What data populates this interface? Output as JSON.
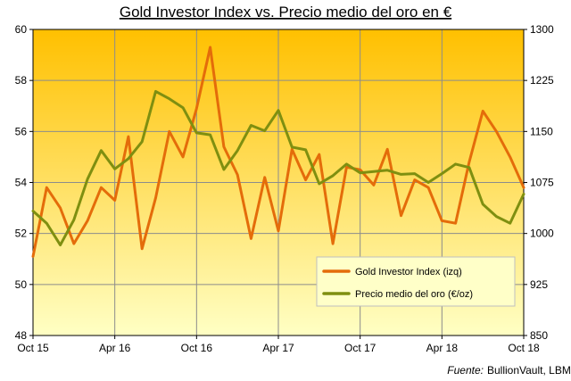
{
  "chart_data": {
    "type": "line",
    "title": "Gold Investor  Index  vs.  Precio medio del oro en €",
    "source_label": "Fuente:",
    "source_value": "BullionVault, LBMA",
    "x_ticks": [
      "Oct 15",
      "Apr 16",
      "Oct 16",
      "Apr 17",
      "Oct 17",
      "Apr 18",
      "Oct 18"
    ],
    "x_range": [
      0,
      36
    ],
    "y_left": {
      "min": 48,
      "max": 60,
      "ticks": [
        48,
        50,
        52,
        54,
        56,
        58,
        60
      ]
    },
    "y_right": {
      "min": 850,
      "max": 1300,
      "ticks": [
        850,
        925,
        1000,
        1075,
        1150,
        1225,
        1300
      ]
    },
    "background": {
      "top": "#ffc000",
      "bottom": "#ffffc4"
    },
    "legend": {
      "position": "bottom-right"
    },
    "series": [
      {
        "name": "Gold Investor Index (izq)",
        "axis": "left",
        "color": "#e46c0a",
        "x": [
          0,
          1,
          2,
          3,
          4,
          5,
          6,
          7,
          8,
          9,
          10,
          11,
          12,
          13,
          14,
          15,
          16,
          17,
          18,
          19,
          20,
          21,
          22,
          23,
          24,
          25,
          26,
          27,
          28,
          29,
          30,
          31,
          32,
          33,
          34,
          35,
          36
        ],
        "values": [
          51.1,
          53.8,
          53.0,
          51.6,
          52.5,
          53.8,
          53.3,
          55.8,
          51.4,
          53.4,
          56.0,
          55.0,
          56.9,
          59.3,
          55.4,
          54.3,
          51.8,
          54.2,
          52.1,
          55.3,
          54.1,
          55.1,
          51.6,
          54.6,
          54.5,
          53.9,
          55.3,
          52.7,
          54.1,
          53.8,
          52.5,
          52.4,
          54.8,
          56.8,
          56.0,
          55.0,
          53.8
        ]
      },
      {
        "name": "Precio medio del oro (€/oz)",
        "axis": "right",
        "color": "#7f8f10",
        "x": [
          0,
          1,
          2,
          3,
          4,
          5,
          6,
          7,
          8,
          9,
          10,
          11,
          12,
          13,
          14,
          15,
          16,
          17,
          18,
          19,
          20,
          21,
          22,
          23,
          24,
          25,
          26,
          27,
          28,
          29,
          30,
          31,
          32,
          33,
          34,
          35,
          36
        ],
        "values": [
          1033,
          1015,
          983,
          1020,
          1080,
          1122,
          1095,
          1110,
          1135,
          1209,
          1198,
          1185,
          1148,
          1145,
          1094,
          1122,
          1159,
          1151,
          1181,
          1127,
          1123,
          1073,
          1085,
          1102,
          1089,
          1091,
          1093,
          1087,
          1088,
          1075,
          1088,
          1102,
          1097,
          1043,
          1025,
          1015,
          1058
        ]
      }
    ]
  }
}
